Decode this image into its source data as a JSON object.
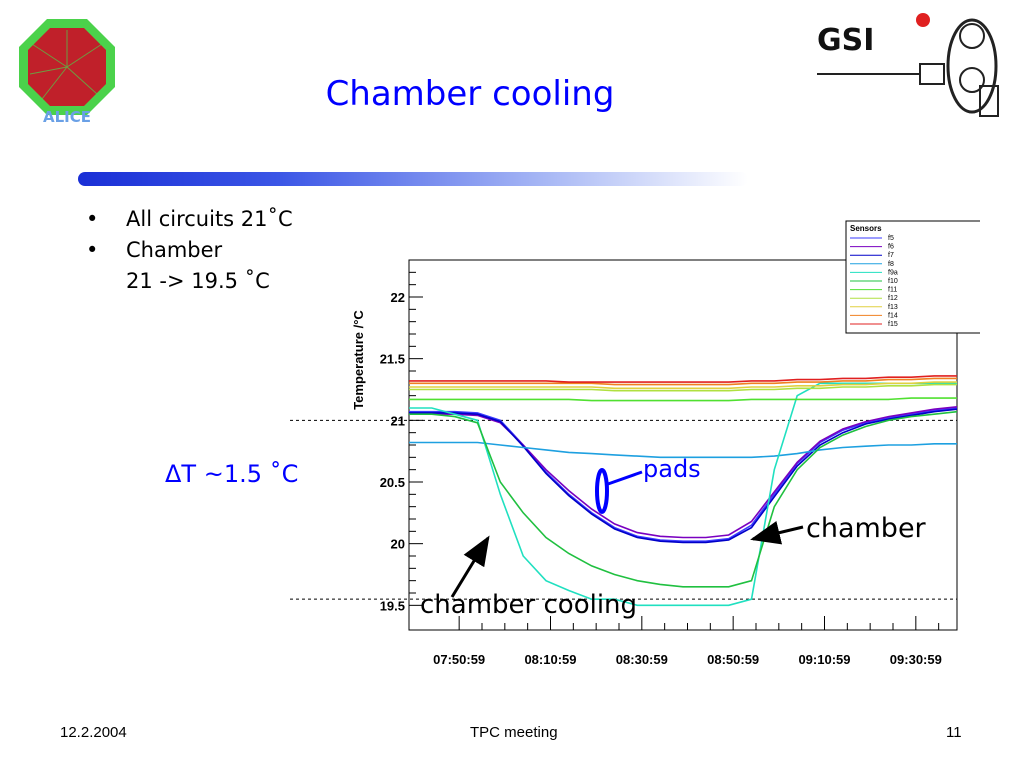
{
  "slide": {
    "title": "Chamber cooling",
    "bullets": [
      "All circuits 21˚C",
      "Chamber"
    ],
    "bullet_sub": "21 -> 19.5 ˚C",
    "delta": "ΔT ~1.5 ˚C",
    "annotations": {
      "pads": "pads",
      "chamber": "chamber",
      "chamber_cooling": "chamber cooling"
    },
    "footer": {
      "date": "12.2.2004",
      "meeting": "TPC meeting",
      "page": "11"
    },
    "logos": {
      "left": "ALICE",
      "right": "GSI"
    },
    "colors": {
      "title": "#0000ff",
      "accent": "#1a2fd6"
    }
  },
  "chart_data": {
    "type": "line",
    "ylabel": "Temperature /°C",
    "xlabel": "",
    "xlim": [
      "07:40:00",
      "09:40:00"
    ],
    "ylim": [
      19.3,
      22.3
    ],
    "x_ticks": [
      "07:50:59",
      "08:10:59",
      "08:30:59",
      "08:50:59",
      "09:10:59",
      "09:30:59"
    ],
    "y_ticks": [
      "19.5",
      "20",
      "20.5",
      "21",
      "21.5",
      "22"
    ],
    "reference_lines": [
      21.0,
      19.55
    ],
    "legend": {
      "title": "Sensors",
      "placement": "top-right",
      "entries": [
        "f5",
        "f6",
        "f7",
        "f8",
        "f9a",
        "f10",
        "f11",
        "f12",
        "f13",
        "f14",
        "f15"
      ]
    },
    "x_minutes": [
      0,
      5,
      10,
      15,
      20,
      25,
      30,
      35,
      40,
      45,
      50,
      55,
      60,
      65,
      70,
      75,
      80,
      85,
      90,
      95,
      100,
      105,
      110,
      115,
      120
    ],
    "series": [
      {
        "name": "f5",
        "color": "#3a3aff",
        "values": [
          21.07,
          21.07,
          21.07,
          21.06,
          21.0,
          20.8,
          20.58,
          20.4,
          20.25,
          20.13,
          20.06,
          20.03,
          20.02,
          20.02,
          20.04,
          20.15,
          20.4,
          20.65,
          20.82,
          20.92,
          20.98,
          21.02,
          21.05,
          21.08,
          21.1
        ]
      },
      {
        "name": "f6",
        "color": "#7a00c0",
        "values": [
          21.05,
          21.05,
          21.05,
          21.04,
          20.98,
          20.8,
          20.6,
          20.43,
          20.28,
          20.16,
          20.09,
          20.06,
          20.05,
          20.05,
          20.07,
          20.18,
          20.42,
          20.66,
          20.83,
          20.93,
          20.99,
          21.03,
          21.06,
          21.09,
          21.11
        ]
      },
      {
        "name": "f7",
        "color": "#0000c8",
        "values": [
          21.06,
          21.06,
          21.06,
          21.05,
          20.99,
          20.79,
          20.57,
          20.39,
          20.24,
          20.12,
          20.05,
          20.02,
          20.01,
          20.01,
          20.03,
          20.13,
          20.38,
          20.63,
          20.8,
          20.9,
          20.97,
          21.01,
          21.04,
          21.07,
          21.09
        ]
      },
      {
        "name": "f8",
        "color": "#1ea0e0",
        "values": [
          20.82,
          20.82,
          20.82,
          20.82,
          20.8,
          20.78,
          20.76,
          20.74,
          20.73,
          20.72,
          20.71,
          20.7,
          20.7,
          20.7,
          20.7,
          20.7,
          20.71,
          20.73,
          20.76,
          20.78,
          20.79,
          20.8,
          20.8,
          20.81,
          20.81
        ]
      },
      {
        "name": "f9a",
        "color": "#20e0c0",
        "values": [
          21.1,
          21.1,
          21.05,
          21.0,
          20.4,
          19.9,
          19.7,
          19.62,
          19.55,
          19.55,
          19.5,
          19.5,
          19.5,
          19.5,
          19.5,
          19.55,
          20.6,
          21.2,
          21.3,
          21.3,
          21.3,
          21.3,
          21.3,
          21.3,
          21.3
        ]
      },
      {
        "name": "f10",
        "color": "#20c040",
        "values": [
          21.05,
          21.05,
          21.03,
          20.98,
          20.5,
          20.25,
          20.05,
          19.92,
          19.82,
          19.75,
          19.7,
          19.67,
          19.65,
          19.65,
          19.65,
          19.7,
          20.3,
          20.6,
          20.78,
          20.88,
          20.95,
          21.0,
          21.03,
          21.05,
          21.07
        ]
      },
      {
        "name": "f11",
        "color": "#50e030",
        "values": [
          21.17,
          21.17,
          21.17,
          21.17,
          21.17,
          21.17,
          21.17,
          21.17,
          21.16,
          21.16,
          21.16,
          21.16,
          21.16,
          21.16,
          21.16,
          21.17,
          21.17,
          21.17,
          21.17,
          21.17,
          21.17,
          21.17,
          21.18,
          21.18,
          21.18
        ]
      },
      {
        "name": "f12",
        "color": "#b0e040",
        "values": [
          21.25,
          21.25,
          21.25,
          21.25,
          21.25,
          21.25,
          21.25,
          21.25,
          21.25,
          21.24,
          21.24,
          21.24,
          21.24,
          21.24,
          21.24,
          21.25,
          21.25,
          21.26,
          21.26,
          21.27,
          21.27,
          21.28,
          21.28,
          21.29,
          21.29
        ]
      },
      {
        "name": "f13",
        "color": "#e0d040",
        "values": [
          21.27,
          21.27,
          21.27,
          21.27,
          21.27,
          21.27,
          21.27,
          21.27,
          21.27,
          21.26,
          21.26,
          21.26,
          21.26,
          21.26,
          21.26,
          21.27,
          21.27,
          21.28,
          21.28,
          21.29,
          21.29,
          21.3,
          21.3,
          21.31,
          21.31
        ]
      },
      {
        "name": "f14",
        "color": "#f08020",
        "values": [
          21.3,
          21.3,
          21.3,
          21.3,
          21.3,
          21.3,
          21.3,
          21.3,
          21.3,
          21.29,
          21.29,
          21.29,
          21.29,
          21.29,
          21.29,
          21.3,
          21.3,
          21.31,
          21.31,
          21.32,
          21.32,
          21.33,
          21.33,
          21.34,
          21.34
        ]
      },
      {
        "name": "f15",
        "color": "#e02020",
        "values": [
          21.32,
          21.32,
          21.32,
          21.32,
          21.32,
          21.32,
          21.32,
          21.31,
          21.31,
          21.31,
          21.31,
          21.31,
          21.31,
          21.31,
          21.31,
          21.32,
          21.32,
          21.33,
          21.33,
          21.34,
          21.34,
          21.35,
          21.35,
          21.36,
          21.36
        ]
      }
    ]
  }
}
